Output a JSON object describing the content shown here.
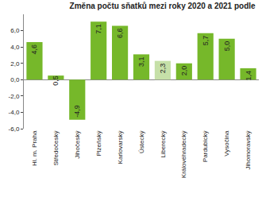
{
  "chart_data": {
    "type": "bar",
    "title": "Změna počtu sňatků mezi roky 2020 a 2021 podle",
    "categories": [
      "Hl. m. Praha",
      "Středočeský",
      "Jihočeský",
      "Plzeňský",
      "Karlovarský",
      "Ústecký",
      "Liberecký",
      "Královéhradecký",
      "Pardubický",
      "Vysočina",
      "Jihomoravský"
    ],
    "values": [
      4.6,
      0.5,
      -4.9,
      7.1,
      6.6,
      3.1,
      2.3,
      2.0,
      5.7,
      5.0,
      1.4
    ],
    "value_labels": [
      "4,6",
      "0,5",
      "-4,9",
      "7,1",
      "6,6",
      "3,1",
      "2,3",
      "2,0",
      "5,7",
      "5,0",
      "1,4"
    ],
    "colors": [
      "#76b82a",
      "#76b82a",
      "#76b82a",
      "#76b82a",
      "#76b82a",
      "#76b82a",
      "#c6e0a8",
      "#76b82a",
      "#76b82a",
      "#76b82a",
      "#76b82a"
    ],
    "ylim": [
      -6,
      8
    ],
    "yticks": [
      {
        "value": -6,
        "label": "-6,0"
      },
      {
        "value": -4,
        "label": "-4,0"
      },
      {
        "value": -2,
        "label": "-2,0"
      },
      {
        "value": 0,
        "label": "0,0"
      },
      {
        "value": 2,
        "label": "2,0"
      },
      {
        "value": 4,
        "label": "4,0"
      },
      {
        "value": 6,
        "label": "6,0"
      }
    ],
    "grid": false,
    "data_labels": true
  }
}
